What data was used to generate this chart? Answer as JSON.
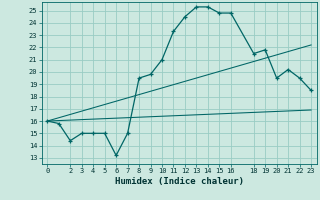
{
  "xlabel": "Humidex (Indice chaleur)",
  "bg_color": "#cce8e0",
  "grid_color": "#99ccc4",
  "line_color": "#006666",
  "xlim": [
    -0.5,
    23.5
  ],
  "ylim": [
    12.5,
    25.7
  ],
  "yticks": [
    13,
    14,
    15,
    16,
    17,
    18,
    19,
    20,
    21,
    22,
    23,
    24,
    25
  ],
  "xticks": [
    0,
    2,
    3,
    4,
    5,
    6,
    7,
    8,
    9,
    10,
    11,
    12,
    13,
    14,
    15,
    16,
    18,
    19,
    20,
    21,
    22,
    23
  ],
  "line1_x": [
    0,
    1,
    2,
    3,
    4,
    5,
    6,
    7,
    8,
    9,
    10,
    11,
    12,
    13,
    14,
    15,
    16,
    18,
    19,
    20,
    21,
    22,
    23
  ],
  "line1_y": [
    16.0,
    15.8,
    14.4,
    15.0,
    15.0,
    15.0,
    13.2,
    15.0,
    19.5,
    19.8,
    21.0,
    23.3,
    24.5,
    25.3,
    25.3,
    24.8,
    24.8,
    21.5,
    21.8,
    19.5,
    20.2,
    19.5,
    18.5
  ],
  "line2_x": [
    0,
    23
  ],
  "line2_y": [
    16.0,
    16.9
  ],
  "line3_x": [
    0,
    23
  ],
  "line3_y": [
    16.0,
    22.2
  ],
  "xlabel_fontsize": 6.5,
  "tick_fontsize": 5.0,
  "linewidth": 0.9,
  "markersize": 3.5
}
